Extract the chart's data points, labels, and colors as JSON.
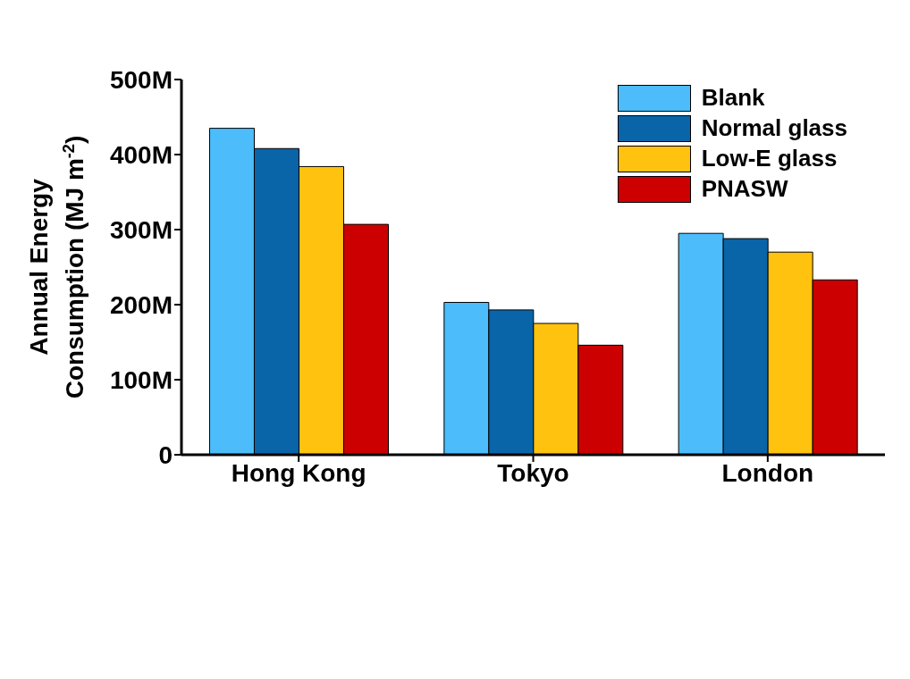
{
  "chart_data": {
    "type": "bar",
    "ylabel": "Annual Energy Consumption (MJ m$^{-2}$)",
    "categories": [
      "Hong Kong",
      "Tokyo",
      "London"
    ],
    "series": [
      {
        "name": "Blank",
        "color": "#4cbcfa",
        "values": [
          435000000,
          203000000,
          295000000
        ]
      },
      {
        "name": "Normal glass",
        "color": "#0a64a8",
        "values": [
          408000000,
          193000000,
          288000000
        ]
      },
      {
        "name": "Low-E glass",
        "color": "#ffc20e",
        "values": [
          384000000,
          175000000,
          270000000
        ]
      },
      {
        "name": "PNASW",
        "color": "#cc0000",
        "values": [
          307000000,
          146000000,
          233000000
        ]
      }
    ],
    "ylim": [
      0,
      500000000
    ],
    "yticks": [
      {
        "value": 0,
        "label": "0"
      },
      {
        "value": 100000000,
        "label": "100M"
      },
      {
        "value": 200000000,
        "label": "200M"
      },
      {
        "value": 300000000,
        "label": "300M"
      },
      {
        "value": 400000000,
        "label": "400M"
      },
      {
        "value": 500000000,
        "label": "500M"
      }
    ],
    "grid": false,
    "legend": "top right"
  }
}
